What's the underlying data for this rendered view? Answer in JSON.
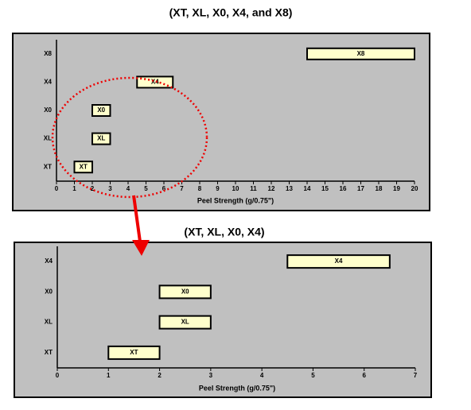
{
  "chart_data": [
    {
      "type": "range",
      "title": "(XT, XL, X0, X4, and X8)",
      "x_label": "Peel Strength (g/0.75\")",
      "categories": [
        "XT",
        "XL",
        "X0",
        "X4",
        "X8"
      ],
      "values": [
        [
          1,
          2
        ],
        [
          2,
          3
        ],
        [
          2,
          3
        ],
        [
          4.5,
          6.5
        ],
        [
          14,
          20
        ]
      ],
      "color": "#ffffcc",
      "xlim": [
        0,
        20
      ],
      "xticks": [
        0,
        1,
        2,
        3,
        4,
        5,
        6,
        7,
        8,
        9,
        10,
        11,
        12,
        13,
        14,
        15,
        16,
        17,
        18,
        19,
        20
      ]
    },
    {
      "type": "range",
      "title": "(XT, XL, X0, X4)",
      "x_label": "Peel Strength (g/0.75\")",
      "categories": [
        "XT",
        "XL",
        "X0",
        "X4"
      ],
      "values": [
        [
          1,
          2
        ],
        [
          2,
          3
        ],
        [
          2,
          3
        ],
        [
          4.5,
          6.5
        ]
      ],
      "color": "#ffffcc",
      "xlim": [
        0,
        7
      ],
      "xticks": [
        0,
        1,
        2,
        3,
        4,
        5,
        6,
        7
      ]
    }
  ]
}
